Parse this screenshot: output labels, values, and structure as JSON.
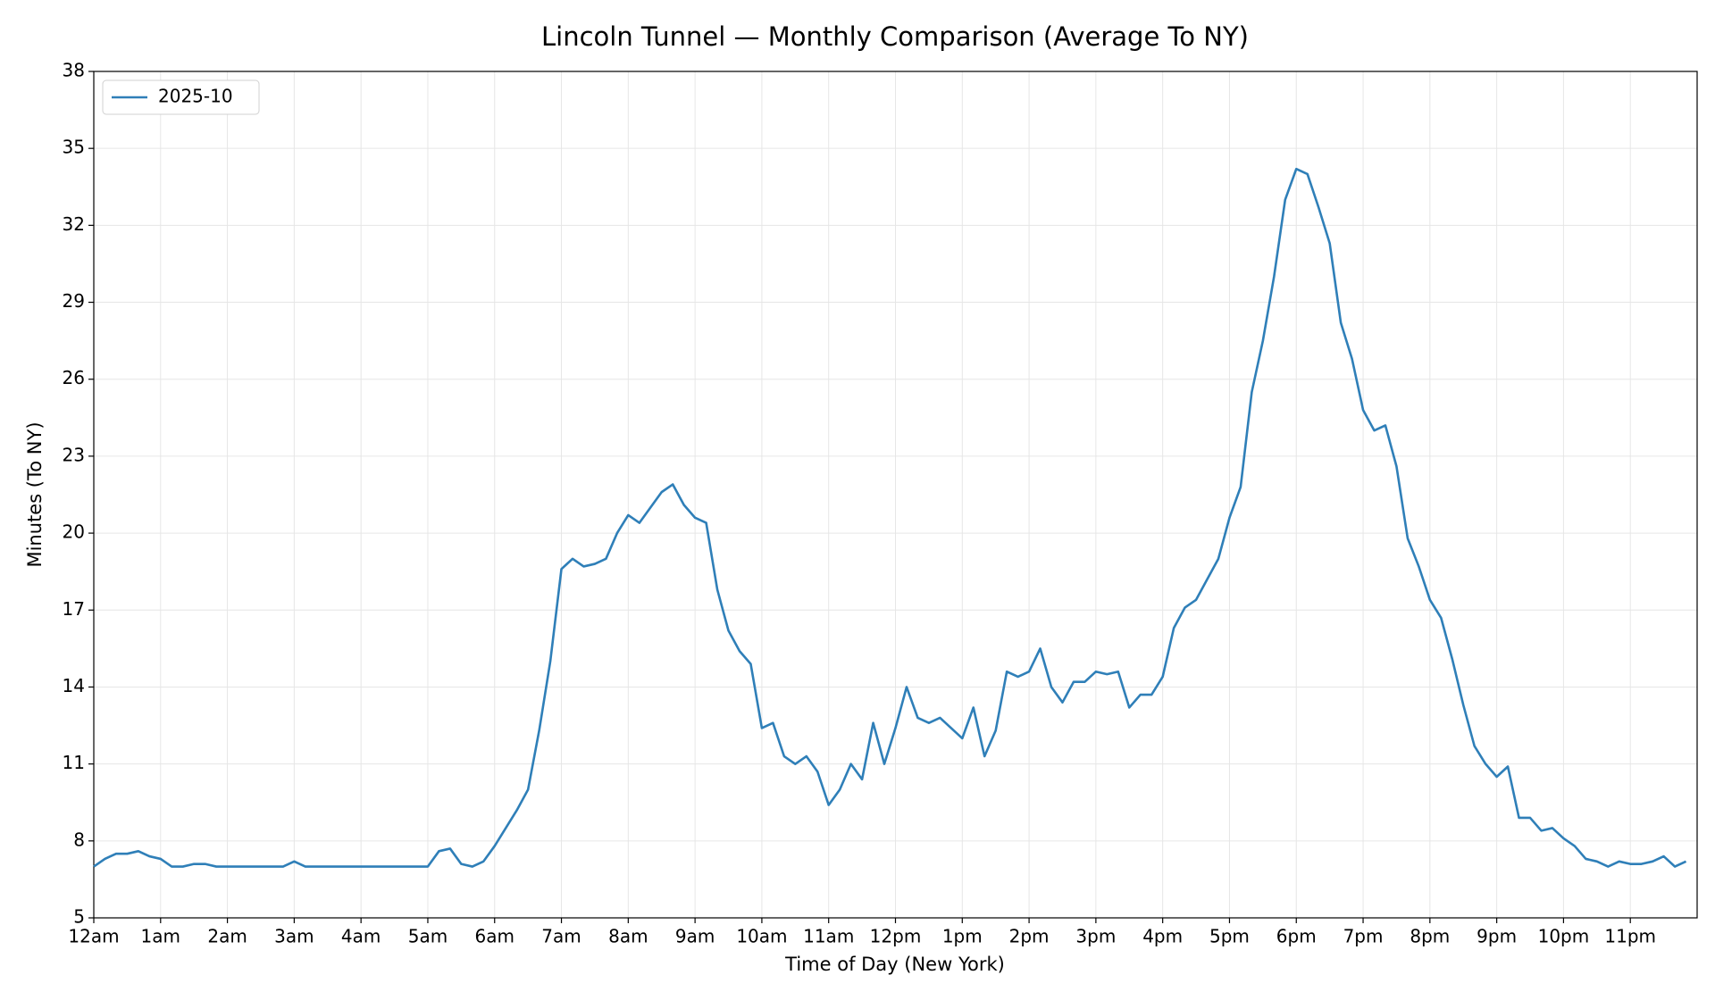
{
  "chart_data": {
    "type": "line",
    "title": "Lincoln Tunnel — Monthly Comparison (Average To NY)",
    "x_label": "Time of Day (New York)",
    "y_label": "Minutes (To NY)",
    "xlim": [
      0,
      1440
    ],
    "ylim": [
      5,
      38
    ],
    "yticks": [
      5,
      8,
      11,
      14,
      17,
      20,
      23,
      26,
      29,
      32,
      35,
      38
    ],
    "xticks": [
      {
        "value": 0,
        "label": "12am"
      },
      {
        "value": 60,
        "label": "1am"
      },
      {
        "value": 120,
        "label": "2am"
      },
      {
        "value": 180,
        "label": "3am"
      },
      {
        "value": 240,
        "label": "4am"
      },
      {
        "value": 300,
        "label": "5am"
      },
      {
        "value": 360,
        "label": "6am"
      },
      {
        "value": 420,
        "label": "7am"
      },
      {
        "value": 480,
        "label": "8am"
      },
      {
        "value": 540,
        "label": "9am"
      },
      {
        "value": 600,
        "label": "10am"
      },
      {
        "value": 660,
        "label": "11am"
      },
      {
        "value": 720,
        "label": "12pm"
      },
      {
        "value": 780,
        "label": "1pm"
      },
      {
        "value": 840,
        "label": "2pm"
      },
      {
        "value": 900,
        "label": "3pm"
      },
      {
        "value": 960,
        "label": "4pm"
      },
      {
        "value": 1020,
        "label": "5pm"
      },
      {
        "value": 1080,
        "label": "6pm"
      },
      {
        "value": 1140,
        "label": "7pm"
      },
      {
        "value": 1200,
        "label": "8pm"
      },
      {
        "value": 1260,
        "label": "9pm"
      },
      {
        "value": 1320,
        "label": "10pm"
      },
      {
        "value": 1380,
        "label": "11pm"
      }
    ],
    "grid": true,
    "legend": "upper left",
    "x": [
      0,
      10,
      20,
      30,
      40,
      50,
      60,
      70,
      80,
      90,
      100,
      110,
      120,
      130,
      140,
      150,
      160,
      170,
      180,
      190,
      200,
      210,
      220,
      230,
      240,
      250,
      260,
      270,
      280,
      290,
      300,
      310,
      320,
      330,
      340,
      350,
      360,
      370,
      380,
      390,
      400,
      410,
      420,
      430,
      440,
      450,
      460,
      470,
      480,
      490,
      500,
      510,
      520,
      530,
      540,
      550,
      560,
      570,
      580,
      590,
      600,
      610,
      620,
      630,
      640,
      650,
      660,
      670,
      680,
      690,
      700,
      710,
      720,
      730,
      740,
      750,
      760,
      770,
      780,
      790,
      800,
      810,
      820,
      830,
      840,
      850,
      860,
      870,
      880,
      890,
      900,
      910,
      920,
      930,
      940,
      950,
      960,
      970,
      980,
      990,
      1000,
      1010,
      1020,
      1030,
      1040,
      1050,
      1060,
      1070,
      1080,
      1090,
      1100,
      1110,
      1120,
      1130,
      1140,
      1150,
      1160,
      1170,
      1180,
      1190,
      1200,
      1210,
      1220,
      1230,
      1240,
      1250,
      1260,
      1270,
      1280,
      1290,
      1300,
      1310,
      1320,
      1330,
      1340,
      1350,
      1360,
      1370,
      1380,
      1390,
      1400,
      1410,
      1420,
      1430
    ],
    "series": [
      {
        "name": "2025-10",
        "color": "#2f7fb8",
        "values": [
          7.0,
          7.3,
          7.5,
          7.5,
          7.6,
          7.4,
          7.3,
          7.0,
          7.0,
          7.1,
          7.1,
          7.0,
          7.0,
          7.0,
          7.0,
          7.0,
          7.0,
          7.0,
          7.2,
          7.0,
          7.0,
          7.0,
          7.0,
          7.0,
          7.0,
          7.0,
          7.0,
          7.0,
          7.0,
          7.0,
          7.0,
          7.6,
          7.7,
          7.1,
          7.0,
          7.2,
          7.8,
          8.5,
          9.2,
          10.0,
          12.3,
          15.0,
          18.6,
          19.0,
          18.7,
          18.8,
          19.0,
          20.0,
          20.7,
          20.4,
          21.0,
          21.6,
          21.9,
          21.1,
          20.6,
          20.4,
          17.8,
          16.2,
          15.4,
          14.9,
          12.4,
          12.6,
          11.3,
          11.0,
          11.3,
          10.7,
          9.4,
          10.0,
          11.0,
          10.4,
          12.6,
          11.0,
          12.4,
          14.0,
          12.8,
          12.6,
          12.8,
          12.4,
          12.0,
          13.2,
          11.3,
          12.3,
          14.6,
          14.4,
          14.6,
          15.5,
          14.0,
          13.4,
          14.2,
          14.2,
          14.6,
          14.5,
          14.6,
          13.2,
          13.7,
          13.7,
          14.4,
          16.3,
          17.1,
          17.4,
          18.2,
          19.0,
          20.6,
          21.8,
          25.5,
          27.5,
          30.0,
          33.0,
          34.2,
          34.0,
          32.7,
          31.3,
          28.2,
          26.8,
          24.8,
          24.0,
          24.2,
          22.6,
          19.8,
          18.7,
          17.4,
          16.7,
          15.1,
          13.3,
          11.7,
          11.0,
          10.5,
          10.9,
          8.9,
          8.9,
          8.4,
          8.5,
          8.1,
          7.8,
          7.3,
          7.2,
          7.0,
          7.2,
          7.1,
          7.1,
          7.2,
          7.4,
          7.0,
          7.2
        ]
      }
    ]
  }
}
